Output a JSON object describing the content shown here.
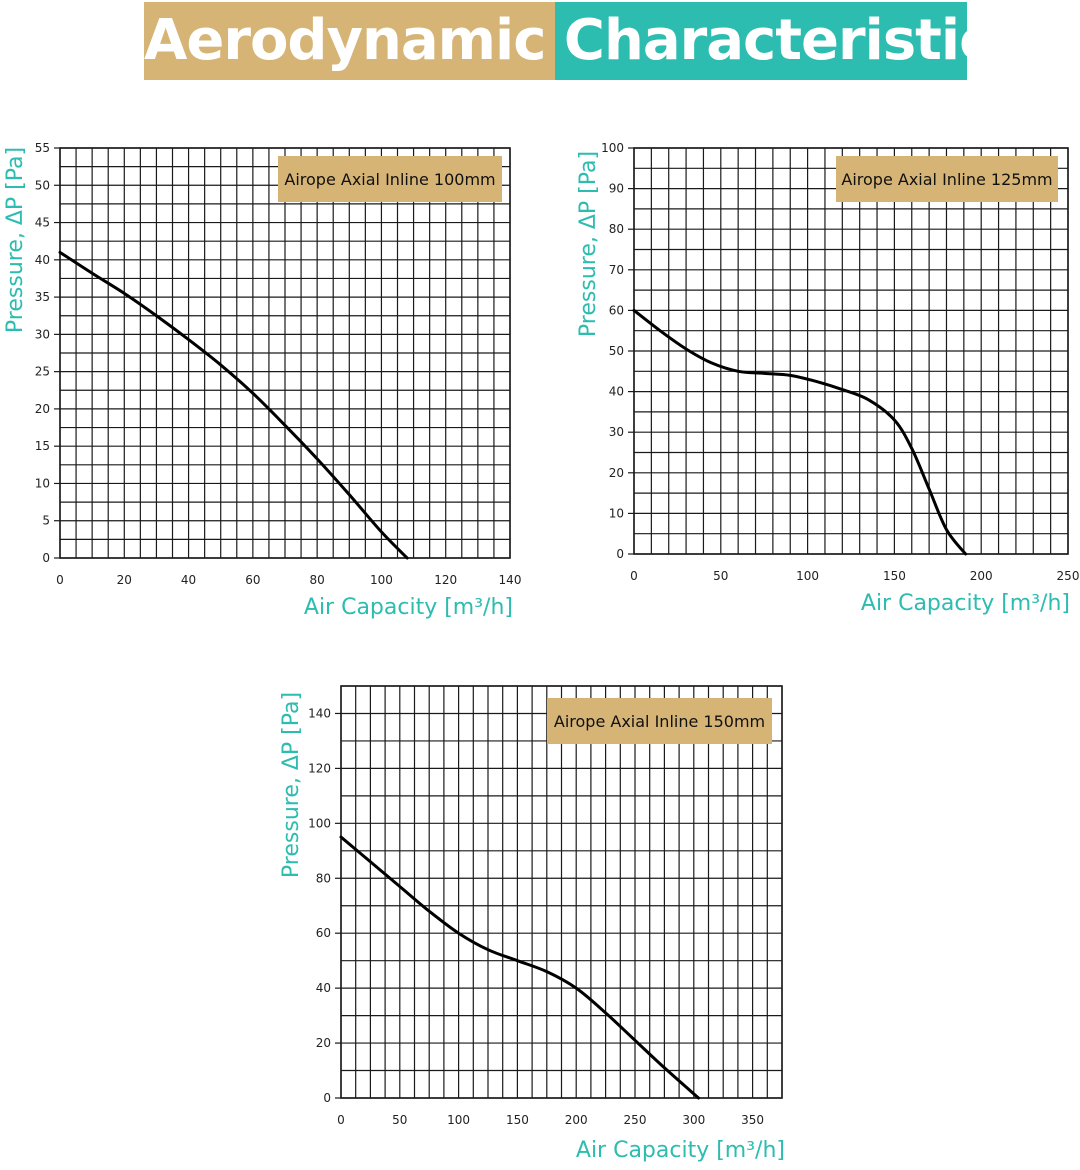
{
  "banner": {
    "title": "Aerodynamic Characteristics",
    "color_left": "#d6b475",
    "color_right": "#2cbcb0",
    "text_color": "#ffffff"
  },
  "colors": {
    "axis_label": "#2cbcb0",
    "legend_box": "#d6b475",
    "grid": "#1a1a1a",
    "curve": "#000000"
  },
  "chart_data": [
    {
      "type": "line",
      "title": "Airope Axial Inline 100mm",
      "xlabel": "Air Capacity [m³/h]",
      "ylabel": "Pressure, ΔP [Pa]",
      "xlim": [
        0,
        140
      ],
      "ylim": [
        0,
        55
      ],
      "xticks": [
        0,
        20,
        40,
        60,
        80,
        100,
        120,
        140
      ],
      "yticks": [
        0,
        5,
        10,
        15,
        20,
        25,
        30,
        35,
        40,
        45,
        50,
        55
      ],
      "grid": true,
      "legend_position": "top-right",
      "series": [
        {
          "x": [
            0,
            10,
            20,
            30,
            40,
            50,
            60,
            70,
            80,
            90,
            100,
            108
          ],
          "y": [
            41,
            38.2,
            35.5,
            32.5,
            29.3,
            25.9,
            22.1,
            17.8,
            13.3,
            8.5,
            3.5,
            0
          ]
        }
      ]
    },
    {
      "type": "line",
      "title": "Airope Axial Inline 125mm",
      "xlabel": "Air Capacity [m³/h]",
      "ylabel": "Pressure, ΔP [Pa]",
      "xlim": [
        0,
        250
      ],
      "ylim": [
        0,
        100
      ],
      "xticks": [
        0,
        50,
        100,
        150,
        200,
        250
      ],
      "yticks": [
        0,
        10,
        20,
        30,
        40,
        50,
        60,
        70,
        80,
        90,
        100
      ],
      "grid": true,
      "legend_position": "top-right",
      "series": [
        {
          "x": [
            0,
            15,
            30,
            45,
            60,
            75,
            90,
            105,
            120,
            135,
            150,
            160,
            170,
            180,
            191
          ],
          "y": [
            60,
            55,
            50.5,
            47,
            45,
            44.5,
            44,
            42.5,
            40.5,
            38,
            33,
            26,
            16,
            6,
            0
          ]
        }
      ]
    },
    {
      "type": "line",
      "title": "Airope Axial Inline 150mm",
      "xlabel": "Air Capacity [m³/h]",
      "ylabel": "Pressure, ΔP [Pa]",
      "xlim": [
        0,
        375
      ],
      "ylim": [
        0,
        150
      ],
      "xticks": [
        0,
        50,
        100,
        150,
        200,
        250,
        300,
        350
      ],
      "yticks": [
        0,
        20,
        40,
        60,
        80,
        100,
        120,
        140
      ],
      "grid": true,
      "legend_position": "top-right",
      "series": [
        {
          "x": [
            0,
            25,
            50,
            75,
            100,
            125,
            150,
            175,
            200,
            225,
            250,
            275,
            304
          ],
          "y": [
            95,
            86,
            77,
            68,
            60,
            54,
            50,
            46,
            40,
            31,
            21,
            11,
            0
          ]
        }
      ]
    }
  ]
}
